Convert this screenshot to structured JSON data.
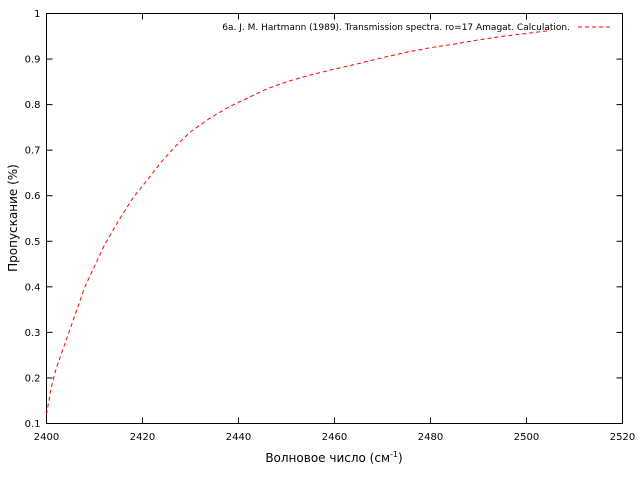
{
  "chart_data": {
    "type": "line",
    "xlabel": "Волновое число (см",
    "xlabel_sup": "-1",
    "xlabel_tail": ")",
    "ylabel": "Пропускание (%)",
    "xlim": [
      2400,
      2520
    ],
    "ylim": [
      0.1,
      1.0
    ],
    "xticks": [
      "2400",
      "2420",
      "2440",
      "2460",
      "2480",
      "2500",
      "2520"
    ],
    "yticks": [
      "0.1",
      "0.2",
      "0.3",
      "0.4",
      "0.5",
      "0.6",
      "0.7",
      "0.8",
      "0.9",
      "1"
    ],
    "legend_position": "top-right",
    "grid": false,
    "series": [
      {
        "name": "6a. J. M. Hartmann (1989). Transmission spectra. ro=17 Amagat. Calculation.",
        "color": "#ff0000",
        "style": "dashed",
        "x": [
          2400,
          2401,
          2402,
          2404,
          2406,
          2408,
          2410,
          2412,
          2415,
          2418,
          2421,
          2424,
          2427,
          2430,
          2434,
          2438,
          2442,
          2446,
          2450,
          2455,
          2460,
          2465,
          2470,
          2475,
          2480,
          2485,
          2490,
          2495,
          2500,
          2505
        ],
        "y": [
          0.12,
          0.18,
          0.22,
          0.28,
          0.34,
          0.4,
          0.445,
          0.49,
          0.545,
          0.595,
          0.635,
          0.675,
          0.71,
          0.74,
          0.77,
          0.795,
          0.815,
          0.835,
          0.85,
          0.865,
          0.878,
          0.89,
          0.903,
          0.915,
          0.925,
          0.933,
          0.942,
          0.95,
          0.956,
          0.963
        ]
      }
    ]
  }
}
